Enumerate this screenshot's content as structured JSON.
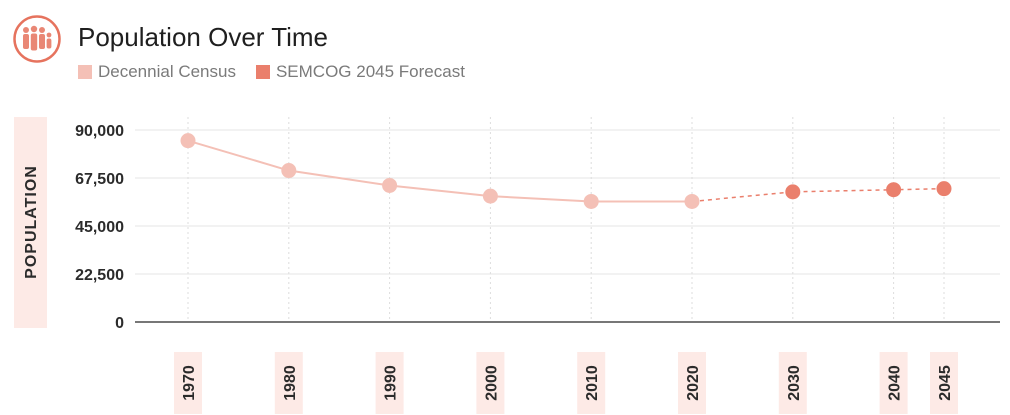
{
  "header": {
    "title": "Population Over Time",
    "logo_icon": "people-group-icon"
  },
  "legend": [
    {
      "label": "Decennial Census",
      "color": "#f4c0b6"
    },
    {
      "label": "SEMCOG 2045 Forecast",
      "color": "#ea7f6c"
    }
  ],
  "colors": {
    "census": "#f4c0b6",
    "forecast": "#ea7f6c",
    "logo": "#e6735e",
    "label_bg": "#fdeae6",
    "grid": "#e6e6e6",
    "axis": "#777777"
  },
  "chart_data": {
    "type": "line",
    "title": "Population Over Time",
    "xlabel": "",
    "ylabel": "POPULATION",
    "ylim": [
      0,
      90000
    ],
    "yticks": [
      0,
      22500,
      45000,
      67500,
      90000
    ],
    "ytick_labels": [
      "0",
      "22,500",
      "45,000",
      "67,500",
      "90,000"
    ],
    "grid": true,
    "legend_position": "top-left",
    "series": [
      {
        "name": "Decennial Census",
        "line_style": "solid",
        "x": [
          1970,
          1980,
          1990,
          2000,
          2010,
          2020
        ],
        "values": [
          85000,
          71000,
          64000,
          59000,
          56500,
          56500
        ]
      },
      {
        "name": "SEMCOG 2045 Forecast",
        "line_style": "dashed",
        "x": [
          2030,
          2040,
          2045
        ],
        "values": [
          61000,
          62000,
          62500
        ]
      }
    ],
    "x_ticks": [
      "1970",
      "1980",
      "1990",
      "2000",
      "2010",
      "2020",
      "2030",
      "2040",
      "2045"
    ]
  }
}
